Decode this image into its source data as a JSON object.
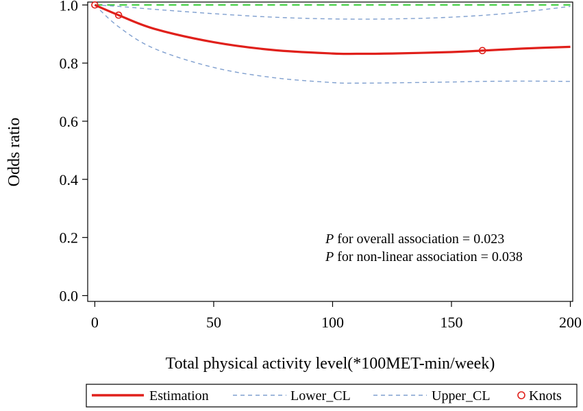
{
  "chart_data": {
    "type": "line",
    "xlabel": "Total physical activity level(*100MET-min/week)",
    "ylabel": "Odds ratio",
    "xlim": [
      -3,
      201
    ],
    "ylim": [
      -0.02,
      1.01
    ],
    "xticks": [
      0,
      50,
      100,
      150,
      200
    ],
    "xtick_labels": [
      "0",
      "50",
      "100",
      "150",
      "200"
    ],
    "yticks": [
      0.0,
      0.2,
      0.4,
      0.6,
      0.8,
      1.0
    ],
    "ytick_labels": [
      "0.0",
      "0.2",
      "0.4",
      "0.6",
      "0.8",
      "1.0"
    ],
    "grid": false,
    "reference_line": {
      "y": 1.0,
      "color": "#33cc33",
      "style": "dashed"
    },
    "series": [
      {
        "name": "Estimation",
        "color": "#e0201b",
        "style": "solid",
        "x": [
          0,
          10,
          25,
          50,
          75,
          100,
          110,
          125,
          150,
          163,
          180,
          200
        ],
        "y": [
          1.0,
          0.965,
          0.918,
          0.872,
          0.845,
          0.833,
          0.832,
          0.833,
          0.838,
          0.843,
          0.85,
          0.856
        ]
      },
      {
        "name": "Lower_CL",
        "color": "#7f9fcf",
        "style": "dashed",
        "x": [
          0,
          10,
          25,
          50,
          75,
          100,
          110,
          125,
          150,
          163,
          180,
          200
        ],
        "y": [
          1.0,
          0.925,
          0.85,
          0.785,
          0.75,
          0.733,
          0.731,
          0.732,
          0.735,
          0.737,
          0.738,
          0.737
        ]
      },
      {
        "name": "Upper_CL",
        "color": "#7f9fcf",
        "style": "dashed",
        "x": [
          0,
          10,
          25,
          50,
          75,
          100,
          125,
          150,
          175,
          200
        ],
        "y": [
          1.0,
          0.995,
          0.985,
          0.97,
          0.958,
          0.952,
          0.952,
          0.958,
          0.972,
          0.995
        ]
      }
    ],
    "knots": {
      "name": "Knots",
      "color": "#e0201b",
      "x": [
        0,
        10,
        163
      ],
      "y": [
        1.0,
        0.965,
        0.843
      ]
    },
    "annotations": [
      {
        "italic": "P",
        "text": " for overall association = 0.023"
      },
      {
        "italic": "P",
        "text": " for non-linear association = 0.038"
      }
    ],
    "legend": {
      "placement": "bottom",
      "entries": [
        "Estimation",
        "Lower_CL",
        "Upper_CL",
        "Knots"
      ]
    }
  }
}
